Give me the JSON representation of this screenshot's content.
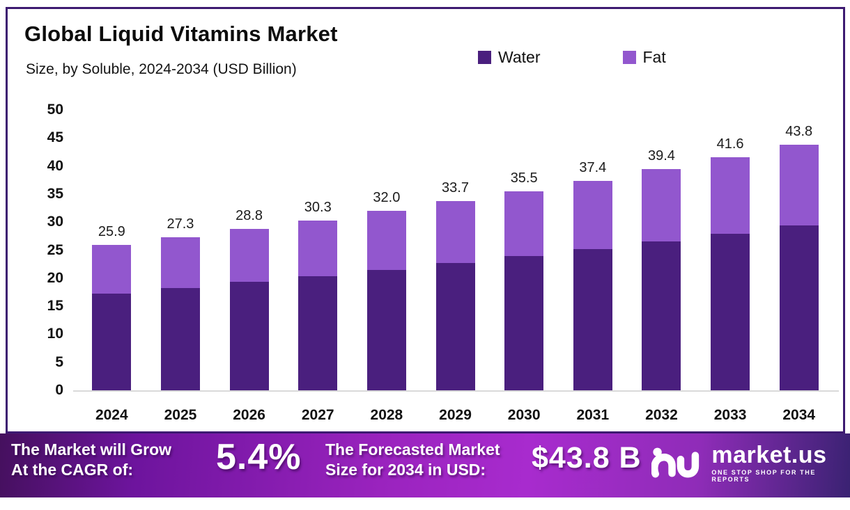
{
  "card": {
    "title": "Global Liquid Vitamins Market",
    "subtitle": "Size, by Soluble, 2024-2034 (USD Billion)"
  },
  "legend": [
    {
      "label": "Water",
      "color": "#4a1f7e"
    },
    {
      "label": "Fat",
      "color": "#9257ce"
    }
  ],
  "chart_data": {
    "type": "bar",
    "stacked": true,
    "title": "Global Liquid Vitamins Market Size, by Soluble, 2024-2034 (USD Billion)",
    "categories": [
      "2024",
      "2025",
      "2026",
      "2027",
      "2028",
      "2029",
      "2030",
      "2031",
      "2032",
      "2033",
      "2034"
    ],
    "series": [
      {
        "name": "Water",
        "color": "#4a1f7e",
        "values": [
          17.3,
          18.3,
          19.3,
          20.4,
          21.5,
          22.7,
          23.9,
          25.2,
          26.5,
          27.9,
          29.4
        ]
      },
      {
        "name": "Fat",
        "color": "#9257ce",
        "values": [
          8.6,
          9.0,
          9.5,
          9.9,
          10.5,
          11.0,
          11.6,
          12.2,
          12.9,
          13.7,
          14.4
        ]
      }
    ],
    "totals": [
      25.9,
      27.3,
      28.8,
      30.3,
      32.0,
      33.7,
      35.5,
      37.4,
      39.4,
      41.6,
      43.8
    ],
    "total_labels": [
      "25.9",
      "27.3",
      "28.8",
      "30.3",
      "32.0",
      "33.7",
      "35.5",
      "37.4",
      "39.4",
      "41.6",
      "43.8"
    ],
    "xlabel": "",
    "ylabel": "",
    "ylim": [
      0,
      50
    ],
    "ytick_step": 5,
    "grid": false,
    "legend_position": "top-right"
  },
  "footer": {
    "cagr_label_line1": "The Market will Grow",
    "cagr_label_line2": "At the CAGR of:",
    "cagr_value": "5.4%",
    "forecast_label_line1": "The Forecasted Market",
    "forecast_label_line2": "Size for 2034 in USD:",
    "forecast_value": "$43.8 B",
    "brand_name": "market.us",
    "brand_tagline": "ONE STOP SHOP FOR THE REPORTS"
  }
}
